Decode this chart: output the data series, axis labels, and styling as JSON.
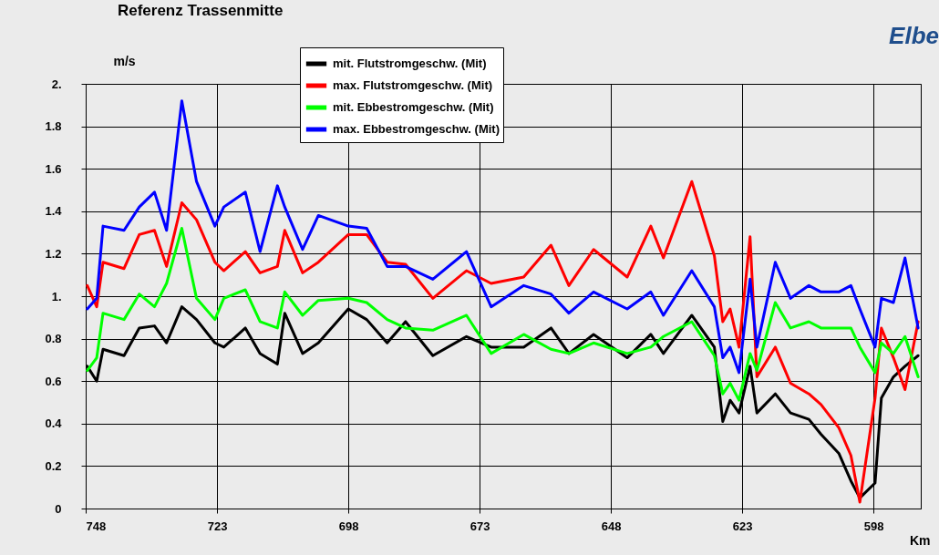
{
  "chart_data": {
    "type": "line",
    "title": "Referenz Trassenmitte",
    "ylabel": "m/s",
    "xlabel": "Km",
    "annotations": [
      "Elbe"
    ],
    "x": [
      747.7,
      745.9,
      744.7,
      740.7,
      737.8,
      734.9,
      732.6,
      729.7,
      726.9,
      723.4,
      721.7,
      717.6,
      714.8,
      711.5,
      710.1,
      706.7,
      703.7,
      698.0,
      694.5,
      690.6,
      687.1,
      681.9,
      675.5,
      670.8,
      664.6,
      659.4,
      656.0,
      651.3,
      644.9,
      640.4,
      638.0,
      632.6,
      628.3,
      626.7,
      625.3,
      623.6,
      621.5,
      620.2,
      616.7,
      613.8,
      610.3,
      608.0,
      604.6,
      602.3,
      600.6,
      597.7,
      596.5,
      594.2,
      592.0,
      589.5
    ],
    "series": [
      {
        "name": "mit. Flutstromgeschw. (Mit)",
        "color": "#000000",
        "values": [
          0.67,
          0.6,
          0.75,
          0.72,
          0.85,
          0.86,
          0.78,
          0.95,
          0.89,
          0.78,
          0.76,
          0.85,
          0.73,
          0.68,
          0.92,
          0.73,
          0.78,
          0.94,
          0.89,
          0.78,
          0.88,
          0.72,
          0.81,
          0.76,
          0.76,
          0.85,
          0.73,
          0.82,
          0.71,
          0.82,
          0.73,
          0.91,
          0.76,
          0.41,
          0.51,
          0.45,
          0.67,
          0.45,
          0.54,
          0.45,
          0.42,
          0.35,
          0.26,
          0.13,
          0.05,
          0.12,
          0.52,
          0.62,
          0.67,
          0.72
        ]
      },
      {
        "name": "max. Flutstromgeschw. (Mit)",
        "color": "#ff0000",
        "values": [
          1.05,
          0.95,
          1.16,
          1.13,
          1.29,
          1.31,
          1.14,
          1.44,
          1.36,
          1.16,
          1.12,
          1.21,
          1.11,
          1.14,
          1.31,
          1.11,
          1.16,
          1.29,
          1.29,
          1.16,
          1.15,
          0.99,
          1.12,
          1.06,
          1.09,
          1.24,
          1.05,
          1.22,
          1.09,
          1.33,
          1.18,
          1.54,
          1.19,
          0.88,
          0.94,
          0.76,
          1.28,
          0.62,
          0.76,
          0.59,
          0.54,
          0.49,
          0.38,
          0.25,
          0.03,
          0.52,
          0.85,
          0.71,
          0.56,
          0.88
        ]
      },
      {
        "name": "mit. Ebbestromgeschw. (Mit)",
        "color": "#00ff00",
        "values": [
          0.65,
          0.71,
          0.92,
          0.89,
          1.01,
          0.95,
          1.06,
          1.32,
          0.99,
          0.89,
          0.99,
          1.03,
          0.88,
          0.85,
          1.02,
          0.91,
          0.98,
          0.99,
          0.97,
          0.89,
          0.85,
          0.84,
          0.91,
          0.73,
          0.82,
          0.75,
          0.73,
          0.78,
          0.73,
          0.76,
          0.81,
          0.88,
          0.72,
          0.54,
          0.59,
          0.51,
          0.73,
          0.65,
          0.97,
          0.85,
          0.88,
          0.85,
          0.85,
          0.85,
          0.76,
          0.64,
          0.78,
          0.73,
          0.81,
          0.62
        ]
      },
      {
        "name": "max. Ebbestromgeschw. (Mit)",
        "color": "#0000ff",
        "values": [
          0.94,
          0.99,
          1.33,
          1.31,
          1.42,
          1.49,
          1.31,
          1.92,
          1.54,
          1.33,
          1.42,
          1.49,
          1.21,
          1.52,
          1.42,
          1.22,
          1.38,
          1.33,
          1.32,
          1.14,
          1.14,
          1.08,
          1.21,
          0.95,
          1.05,
          1.01,
          0.92,
          1.02,
          0.94,
          1.02,
          0.91,
          1.12,
          0.95,
          0.71,
          0.76,
          0.64,
          1.08,
          0.76,
          1.16,
          0.99,
          1.05,
          1.02,
          1.02,
          1.05,
          0.94,
          0.76,
          0.99,
          0.97,
          1.18,
          0.85
        ]
      }
    ],
    "xlim": [
      748,
      589
    ],
    "xticks": [
      748,
      723,
      698,
      673,
      648,
      623,
      598
    ],
    "ylim": [
      0,
      2
    ],
    "yticks": [
      0,
      0.2,
      0.4,
      0.6,
      0.8,
      {
        "value": 1,
        "label": "1."
      },
      1.2,
      1.4,
      1.6,
      1.8,
      {
        "value": 2,
        "label": "2."
      }
    ],
    "grid": true,
    "legend": "top",
    "marker": "none",
    "line_style": "solid"
  }
}
